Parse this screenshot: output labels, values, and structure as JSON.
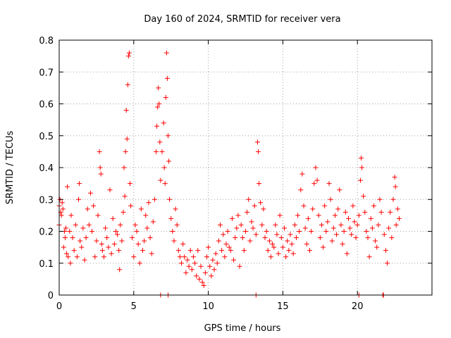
{
  "chart_data": {
    "type": "scatter",
    "title": "Day 160 of 2024, SRMTID for receiver vera",
    "xlabel": "GPS time / hours",
    "ylabel": "SRMTID / TECUs",
    "xlim": [
      0,
      25
    ],
    "ylim": [
      0,
      0.8
    ],
    "xticks": [
      0,
      5,
      10,
      15,
      20
    ],
    "xtick_labels": [
      "0",
      "5",
      "10",
      "15",
      "20"
    ],
    "yticks": [
      0,
      0.1,
      0.2,
      0.3,
      0.4,
      0.5,
      0.6,
      0.7,
      0.8
    ],
    "ytick_labels": [
      "0",
      "0.1",
      "0.2",
      "0.3",
      "0.4",
      "0.5",
      "0.6",
      "0.7",
      "0.8"
    ],
    "grid": true,
    "marker": "+",
    "color": "#ff0000",
    "series": [
      {
        "name": "SRMTID",
        "points": [
          [
            0.0,
            0.22
          ],
          [
            0.0,
            0.28
          ],
          [
            0.05,
            0.3
          ],
          [
            0.1,
            0.26
          ],
          [
            0.15,
            0.25
          ],
          [
            0.2,
            0.29
          ],
          [
            0.25,
            0.27
          ],
          [
            0.3,
            0.15
          ],
          [
            0.35,
            0.2
          ],
          [
            0.4,
            0.18
          ],
          [
            0.45,
            0.21
          ],
          [
            0.5,
            0.13
          ],
          [
            0.55,
            0.34
          ],
          [
            0.6,
            0.12
          ],
          [
            0.7,
            0.2
          ],
          [
            0.75,
            0.1
          ],
          [
            0.8,
            0.25
          ],
          [
            0.9,
            0.18
          ],
          [
            1.0,
            0.14
          ],
          [
            1.1,
            0.22
          ],
          [
            1.2,
            0.12
          ],
          [
            1.3,
            0.3
          ],
          [
            1.35,
            0.35
          ],
          [
            1.4,
            0.17
          ],
          [
            1.5,
            0.15
          ],
          [
            1.6,
            0.21
          ],
          [
            1.7,
            0.11
          ],
          [
            1.8,
            0.18
          ],
          [
            1.9,
            0.27
          ],
          [
            2.0,
            0.22
          ],
          [
            2.1,
            0.32
          ],
          [
            2.2,
            0.2
          ],
          [
            2.3,
            0.28
          ],
          [
            2.4,
            0.12
          ],
          [
            2.5,
            0.17
          ],
          [
            2.6,
            0.25
          ],
          [
            2.7,
            0.45
          ],
          [
            2.75,
            0.4
          ],
          [
            2.8,
            0.38
          ],
          [
            2.85,
            0.16
          ],
          [
            2.9,
            0.14
          ],
          [
            3.0,
            0.12
          ],
          [
            3.1,
            0.21
          ],
          [
            3.2,
            0.18
          ],
          [
            3.3,
            0.15
          ],
          [
            3.4,
            0.33
          ],
          [
            3.5,
            0.13
          ],
          [
            3.6,
            0.24
          ],
          [
            3.7,
            0.16
          ],
          [
            3.8,
            0.2
          ],
          [
            3.9,
            0.19
          ],
          [
            4.0,
            0.14
          ],
          [
            4.05,
            0.08
          ],
          [
            4.1,
            0.22
          ],
          [
            4.2,
            0.17
          ],
          [
            4.3,
            0.26
          ],
          [
            4.35,
            0.4
          ],
          [
            4.4,
            0.31
          ],
          [
            4.45,
            0.45
          ],
          [
            4.5,
            0.58
          ],
          [
            4.55,
            0.49
          ],
          [
            4.6,
            0.66
          ],
          [
            4.65,
            0.75
          ],
          [
            4.7,
            0.76
          ],
          [
            4.75,
            0.35
          ],
          [
            4.8,
            0.28
          ],
          [
            4.9,
            0.18
          ],
          [
            5.0,
            0.12
          ],
          [
            5.1,
            0.22
          ],
          [
            5.2,
            0.2
          ],
          [
            5.3,
            0.16
          ],
          [
            5.4,
            0.1
          ],
          [
            5.5,
            0.27
          ],
          [
            5.6,
            0.14
          ],
          [
            5.7,
            0.17
          ],
          [
            5.8,
            0.25
          ],
          [
            5.9,
            0.21
          ],
          [
            6.0,
            0.29
          ],
          [
            6.1,
            0.18
          ],
          [
            6.2,
            0.13
          ],
          [
            6.3,
            0.23
          ],
          [
            6.4,
            0.3
          ],
          [
            6.5,
            0.45
          ],
          [
            6.55,
            0.53
          ],
          [
            6.6,
            0.59
          ],
          [
            6.65,
            0.65
          ],
          [
            6.7,
            0.6
          ],
          [
            6.75,
            0.48
          ],
          [
            6.8,
            0.36
          ],
          [
            6.9,
            0.45
          ],
          [
            7.0,
            0.54
          ],
          [
            7.05,
            0.4
          ],
          [
            7.1,
            0.35
          ],
          [
            7.15,
            0.62
          ],
          [
            7.2,
            0.76
          ],
          [
            7.25,
            0.68
          ],
          [
            7.3,
            0.5
          ],
          [
            7.35,
            0.42
          ],
          [
            7.4,
            0.3
          ],
          [
            7.5,
            0.24
          ],
          [
            7.6,
            0.2
          ],
          [
            7.7,
            0.17
          ],
          [
            7.8,
            0.27
          ],
          [
            7.9,
            0.22
          ],
          [
            8.0,
            0.14
          ],
          [
            8.1,
            0.12
          ],
          [
            8.2,
            0.1
          ],
          [
            8.3,
            0.16
          ],
          [
            8.4,
            0.12
          ],
          [
            8.5,
            0.07
          ],
          [
            8.6,
            0.11
          ],
          [
            8.7,
            0.09
          ],
          [
            8.8,
            0.14
          ],
          [
            8.9,
            0.08
          ],
          [
            9.0,
            0.12
          ],
          [
            9.1,
            0.1
          ],
          [
            9.2,
            0.06
          ],
          [
            9.3,
            0.14
          ],
          [
            9.4,
            0.05
          ],
          [
            9.5,
            0.09
          ],
          [
            9.6,
            0.04
          ],
          [
            9.7,
            0.03
          ],
          [
            9.8,
            0.07
          ],
          [
            9.9,
            0.12
          ],
          [
            10.0,
            0.15
          ],
          [
            10.1,
            0.09
          ],
          [
            10.2,
            0.06
          ],
          [
            10.3,
            0.11
          ],
          [
            10.4,
            0.08
          ],
          [
            10.5,
            0.13
          ],
          [
            10.6,
            0.1
          ],
          [
            10.7,
            0.17
          ],
          [
            10.8,
            0.22
          ],
          [
            10.9,
            0.14
          ],
          [
            11.0,
            0.19
          ],
          [
            11.1,
            0.12
          ],
          [
            11.2,
            0.16
          ],
          [
            11.3,
            0.2
          ],
          [
            11.4,
            0.15
          ],
          [
            11.5,
            0.14
          ],
          [
            11.6,
            0.24
          ],
          [
            11.7,
            0.11
          ],
          [
            11.8,
            0.18
          ],
          [
            11.9,
            0.21
          ],
          [
            12.0,
            0.25
          ],
          [
            12.1,
            0.09
          ],
          [
            12.2,
            0.22
          ],
          [
            12.3,
            0.18
          ],
          [
            12.4,
            0.14
          ],
          [
            12.5,
            0.2
          ],
          [
            12.6,
            0.26
          ],
          [
            12.7,
            0.3
          ],
          [
            12.8,
            0.17
          ],
          [
            12.9,
            0.23
          ],
          [
            13.0,
            0.21
          ],
          [
            13.1,
            0.28
          ],
          [
            13.2,
            0.19
          ],
          [
            13.3,
            0.48
          ],
          [
            13.35,
            0.45
          ],
          [
            13.4,
            0.35
          ],
          [
            13.5,
            0.29
          ],
          [
            13.6,
            0.22
          ],
          [
            13.7,
            0.27
          ],
          [
            13.8,
            0.18
          ],
          [
            13.9,
            0.2
          ],
          [
            14.0,
            0.14
          ],
          [
            14.1,
            0.17
          ],
          [
            14.2,
            0.12
          ],
          [
            14.3,
            0.16
          ],
          [
            14.4,
            0.15
          ],
          [
            14.5,
            0.22
          ],
          [
            14.6,
            0.19
          ],
          [
            14.7,
            0.13
          ],
          [
            14.8,
            0.25
          ],
          [
            14.9,
            0.18
          ],
          [
            15.0,
            0.15
          ],
          [
            15.1,
            0.21
          ],
          [
            15.2,
            0.12
          ],
          [
            15.3,
            0.17
          ],
          [
            15.4,
            0.14
          ],
          [
            15.5,
            0.19
          ],
          [
            15.6,
            0.16
          ],
          [
            15.7,
            0.13
          ],
          [
            15.8,
            0.22
          ],
          [
            15.9,
            0.18
          ],
          [
            16.0,
            0.25
          ],
          [
            16.1,
            0.2
          ],
          [
            16.2,
            0.33
          ],
          [
            16.3,
            0.38
          ],
          [
            16.4,
            0.28
          ],
          [
            16.5,
            0.21
          ],
          [
            16.6,
            0.16
          ],
          [
            16.7,
            0.24
          ],
          [
            16.8,
            0.14
          ],
          [
            16.9,
            0.2
          ],
          [
            17.0,
            0.27
          ],
          [
            17.1,
            0.35
          ],
          [
            17.2,
            0.4
          ],
          [
            17.3,
            0.36
          ],
          [
            17.4,
            0.25
          ],
          [
            17.5,
            0.18
          ],
          [
            17.6,
            0.22
          ],
          [
            17.7,
            0.15
          ],
          [
            17.8,
            0.28
          ],
          [
            17.9,
            0.2
          ],
          [
            18.0,
            0.23
          ],
          [
            18.1,
            0.35
          ],
          [
            18.2,
            0.3
          ],
          [
            18.3,
            0.17
          ],
          [
            18.4,
            0.21
          ],
          [
            18.5,
            0.25
          ],
          [
            18.6,
            0.19
          ],
          [
            18.7,
            0.27
          ],
          [
            18.8,
            0.33
          ],
          [
            18.9,
            0.22
          ],
          [
            19.0,
            0.16
          ],
          [
            19.1,
            0.2
          ],
          [
            19.2,
            0.26
          ],
          [
            19.3,
            0.13
          ],
          [
            19.4,
            0.24
          ],
          [
            19.5,
            0.21
          ],
          [
            19.6,
            0.19
          ],
          [
            19.7,
            0.28
          ],
          [
            19.8,
            0.23
          ],
          [
            19.9,
            0.18
          ],
          [
            20.0,
            0.22
          ],
          [
            20.1,
            0.25
          ],
          [
            20.2,
            0.36
          ],
          [
            20.25,
            0.43
          ],
          [
            20.3,
            0.4
          ],
          [
            20.4,
            0.31
          ],
          [
            20.5,
            0.26
          ],
          [
            20.6,
            0.2
          ],
          [
            20.7,
            0.18
          ],
          [
            20.8,
            0.12
          ],
          [
            20.9,
            0.24
          ],
          [
            21.0,
            0.21
          ],
          [
            21.1,
            0.28
          ],
          [
            21.2,
            0.17
          ],
          [
            21.3,
            0.15
          ],
          [
            21.4,
            0.22
          ],
          [
            21.5,
            0.3
          ],
          [
            21.6,
            0.26
          ],
          [
            21.7,
            0.0
          ],
          [
            21.75,
            0.0
          ],
          [
            21.8,
            0.19
          ],
          [
            21.9,
            0.14
          ],
          [
            22.0,
            0.1
          ],
          [
            22.1,
            0.21
          ],
          [
            22.2,
            0.26
          ],
          [
            22.3,
            0.18
          ],
          [
            22.4,
            0.3
          ],
          [
            22.5,
            0.37
          ],
          [
            22.55,
            0.34
          ],
          [
            22.6,
            0.22
          ],
          [
            22.7,
            0.27
          ],
          [
            22.8,
            0.24
          ],
          [
            6.8,
            0.0
          ],
          [
            7.3,
            0.0
          ],
          [
            13.2,
            0.0
          ],
          [
            20.1,
            0.0
          ]
        ]
      }
    ]
  }
}
